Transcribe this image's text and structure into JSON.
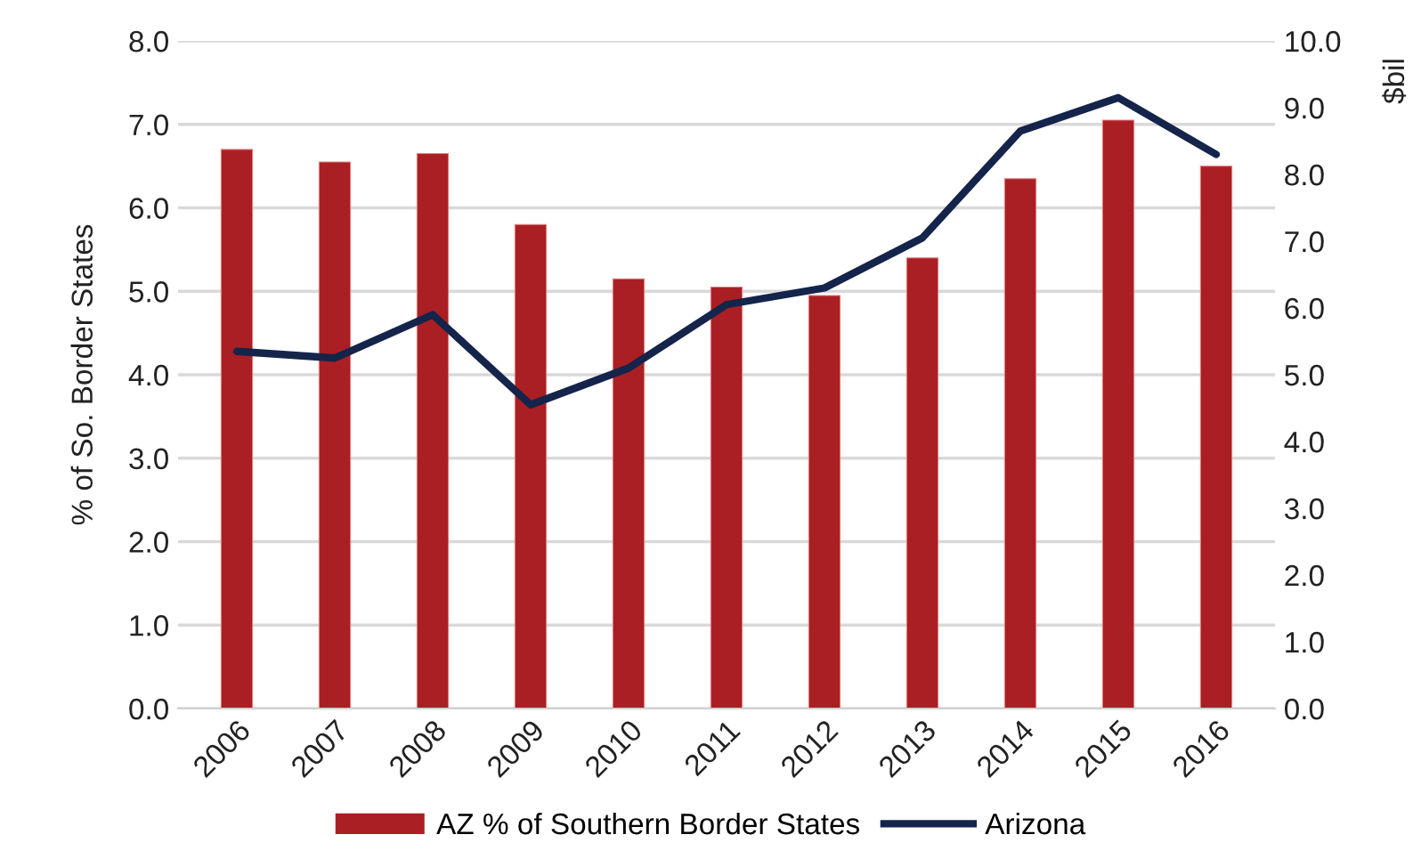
{
  "chart_data": {
    "type": "bar",
    "ylabel": "% of So. Border States",
    "y2label": "$bil",
    "categories": [
      "2006",
      "2007",
      "2008",
      "2009",
      "2010",
      "2011",
      "2012",
      "2013",
      "2014",
      "2015",
      "2016"
    ],
    "series": [
      {
        "name": "AZ % of Southern Border States",
        "color": "#a91f24",
        "values": [
          6.7,
          6.55,
          6.65,
          5.8,
          5.15,
          5.05,
          4.95,
          5.4,
          6.35,
          7.05,
          6.5
        ]
      },
      {
        "name": "Arizona",
        "type": "line",
        "axis": "y2",
        "color": "#14244a",
        "values": [
          5.35,
          5.25,
          5.9,
          4.55,
          5.1,
          6.05,
          6.3,
          7.05,
          8.65,
          9.15,
          8.3
        ]
      }
    ],
    "ylim": [
      0,
      8
    ],
    "yticks": [
      {
        "value": 0,
        "label": "0.0"
      },
      {
        "value": 1,
        "label": "1.0"
      },
      {
        "value": 2,
        "label": "2.0"
      },
      {
        "value": 3,
        "label": "3.0"
      },
      {
        "value": 4,
        "label": "4.0"
      },
      {
        "value": 5,
        "label": "5.0"
      },
      {
        "value": 6,
        "label": "6.0"
      },
      {
        "value": 7,
        "label": "7.0"
      },
      {
        "value": 8,
        "label": "8.0"
      }
    ],
    "y2lim": [
      0,
      10
    ],
    "y2ticks": [
      {
        "value": 0,
        "label": "0.0"
      },
      {
        "value": 1,
        "label": "1.0"
      },
      {
        "value": 2,
        "label": "2.0"
      },
      {
        "value": 3,
        "label": "3.0"
      },
      {
        "value": 4,
        "label": "4.0"
      },
      {
        "value": 5,
        "label": "5.0"
      },
      {
        "value": 6,
        "label": "6.0"
      },
      {
        "value": 7,
        "label": "7.0"
      },
      {
        "value": 8,
        "label": "8.0"
      },
      {
        "value": 9,
        "label": "9.0"
      },
      {
        "value": 10,
        "label": "10.0"
      }
    ],
    "grid": "y",
    "legend": "bottom"
  }
}
